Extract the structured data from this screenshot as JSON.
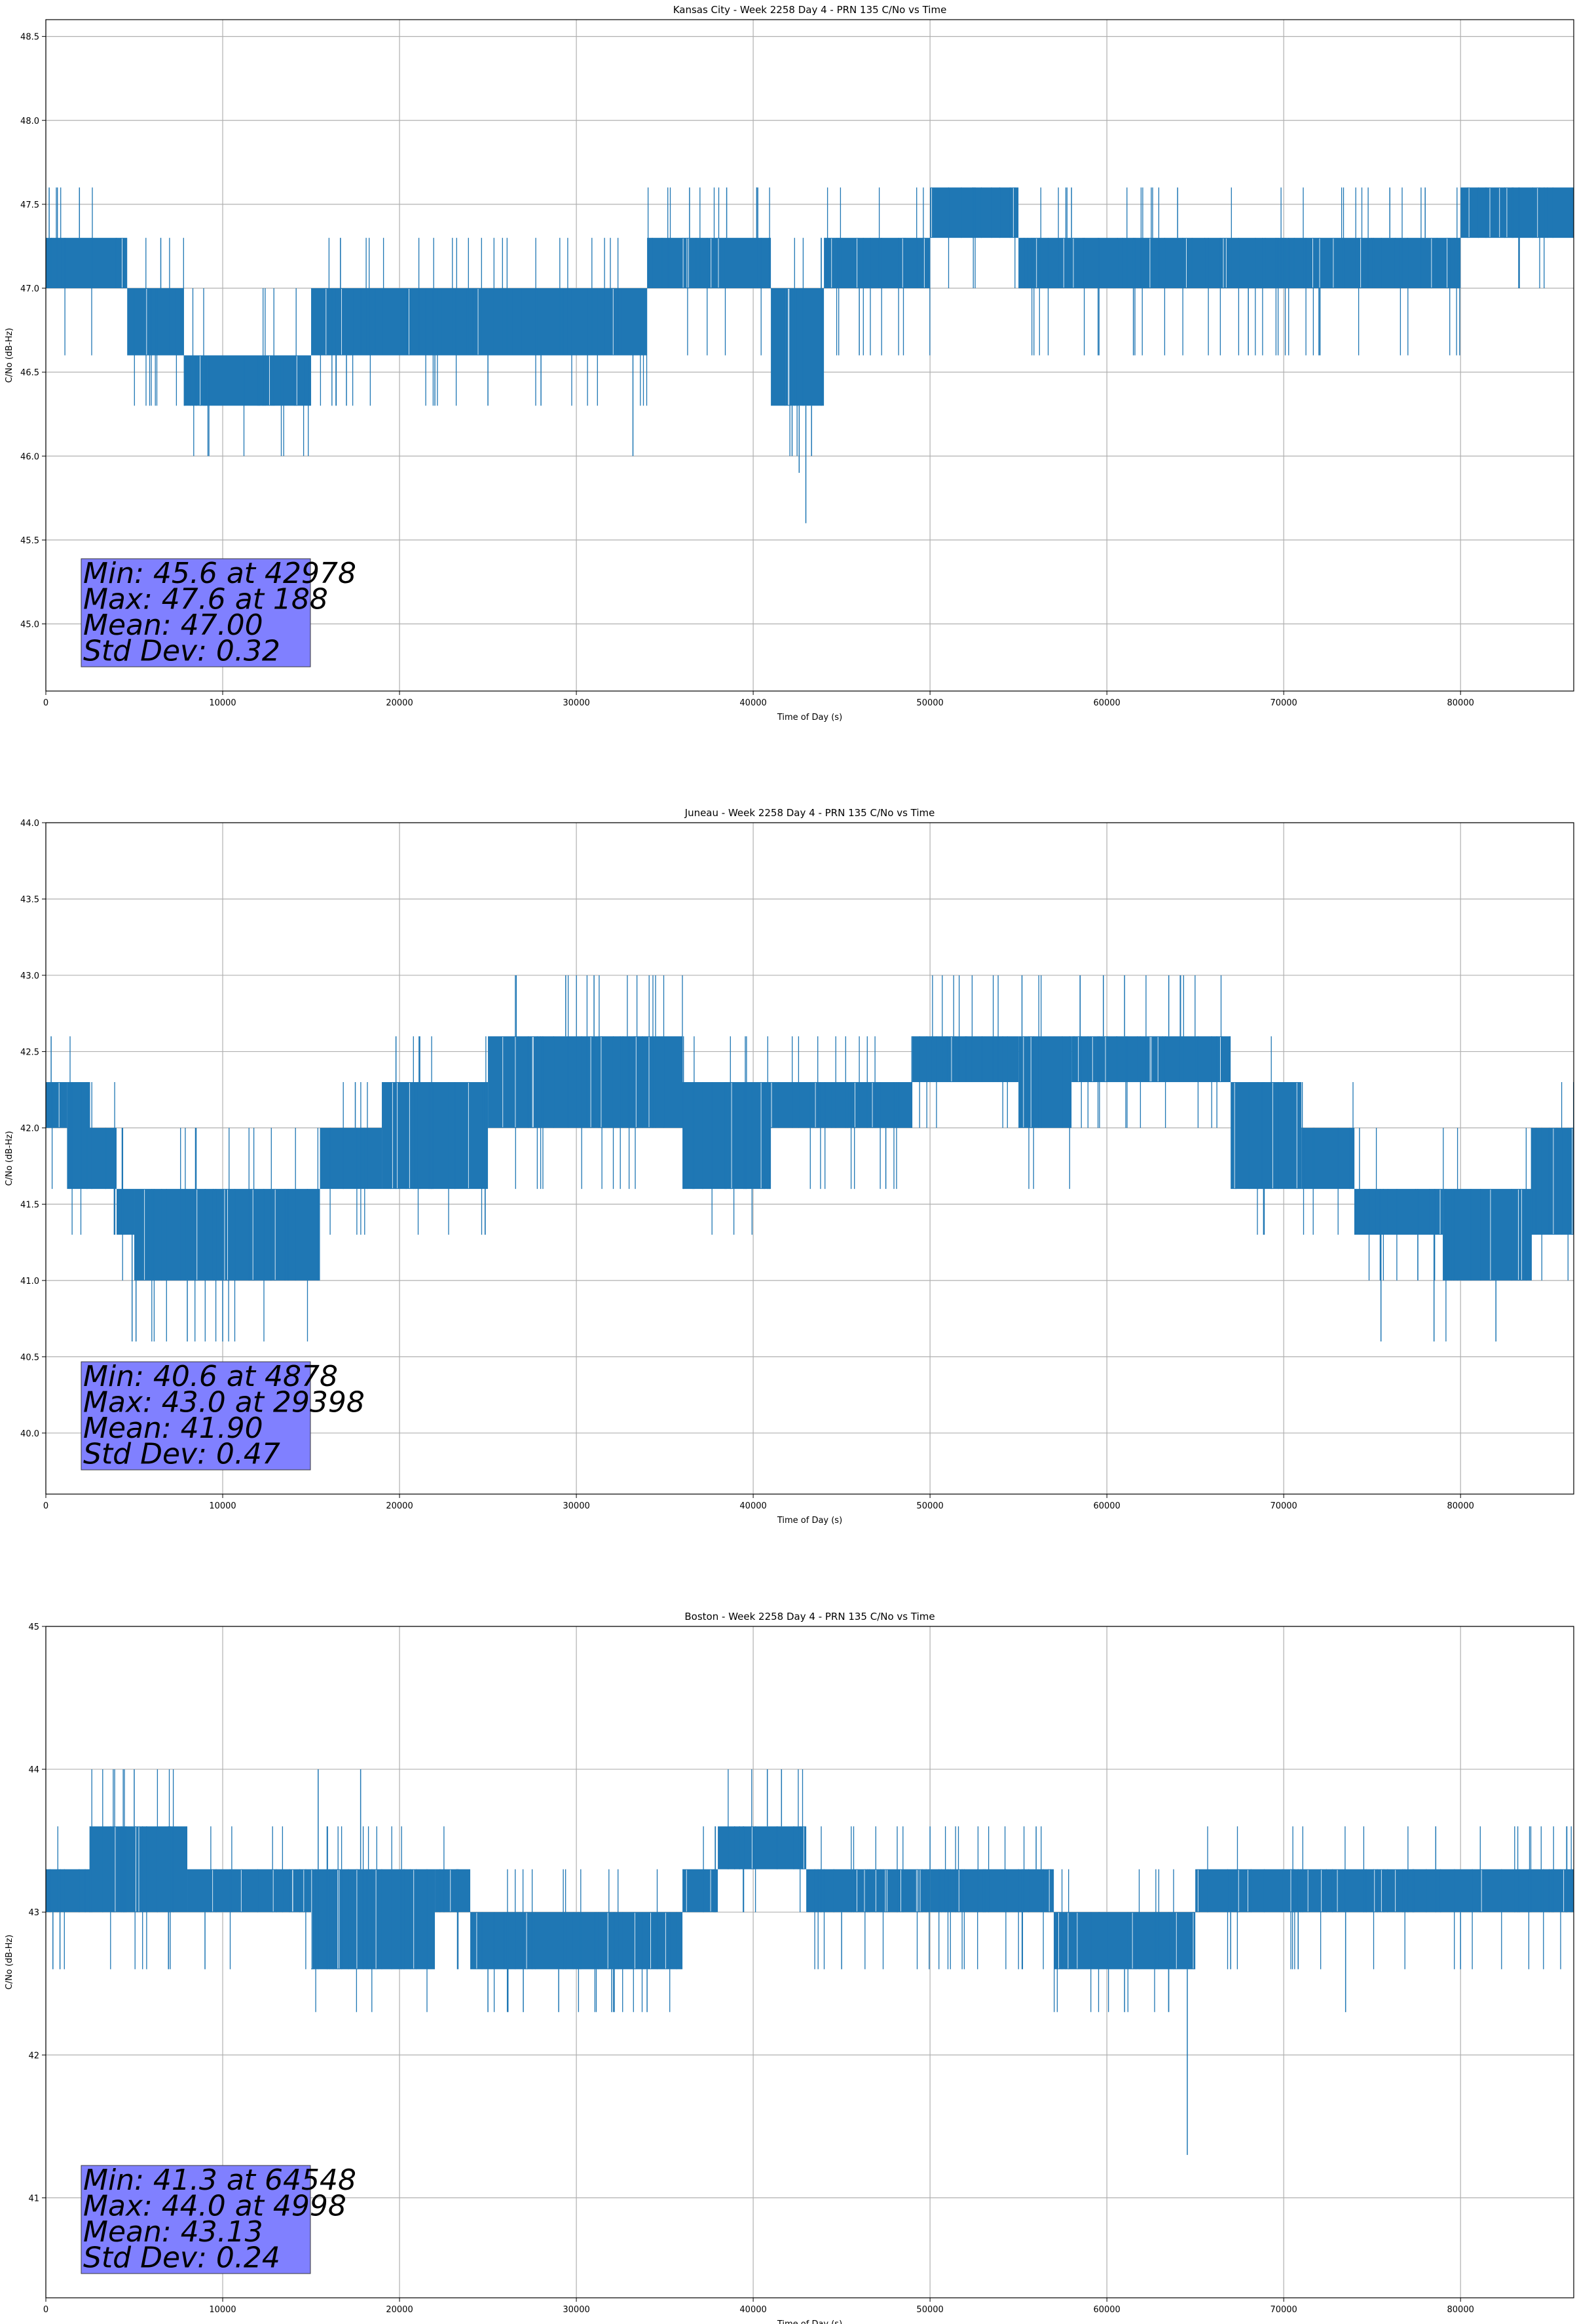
{
  "colors": {
    "series": "#1f77b4",
    "grid": "#b0b0b0",
    "stats_box": "#8080ff"
  },
  "chart_data": [
    {
      "type": "line",
      "title": "Kansas City - Week 2258 Day 4 - PRN 135 C/No vs Time",
      "xlabel": "Time of Day (s)",
      "ylabel": "C/No (dB-Hz)",
      "xlim": [
        0,
        86400
      ],
      "ylim": [
        44.6,
        48.6
      ],
      "xticks": [
        0,
        10000,
        20000,
        30000,
        40000,
        50000,
        60000,
        70000,
        80000
      ],
      "yticks": [
        45.0,
        45.5,
        46.0,
        46.5,
        47.0,
        47.5,
        48.0,
        48.5
      ],
      "ytick_decimals": 1,
      "grid": true,
      "legend": "none",
      "stats_placement": "bottom-left",
      "stats": [
        "Min: 45.6 at 42978",
        "Max: 47.6 at 188",
        "Mean: 47.00",
        "Std Dev: 0.32"
      ],
      "series": [
        {
          "levels": [
            45.6,
            45.9,
            46.0,
            46.3,
            46.6,
            47.0,
            47.3,
            47.6
          ],
          "min_point": [
            42978,
            45.6
          ],
          "max_point": [
            188,
            47.6
          ],
          "segments": [
            [
              0,
              4600,
              47.0,
              47.3
            ],
            [
              4600,
              7800,
              46.6,
              47.0
            ],
            [
              7800,
              15000,
              46.3,
              46.6
            ],
            [
              15000,
              34000,
              46.6,
              47.0
            ],
            [
              34000,
              36000,
              47.0,
              47.3
            ],
            [
              36000,
              41000,
              47.0,
              47.3
            ],
            [
              41000,
              44000,
              46.3,
              47.0
            ],
            [
              44000,
              50000,
              47.0,
              47.3
            ],
            [
              50000,
              55000,
              47.3,
              47.6
            ],
            [
              55000,
              80000,
              47.0,
              47.3
            ],
            [
              80000,
              86400,
              47.3,
              47.6
            ]
          ],
          "spikes": [
            [
              188,
              47.6
            ],
            [
              1900,
              47.6
            ],
            [
              6500,
              47.3
            ],
            [
              9000,
              46.3
            ],
            [
              12000,
              46.3
            ],
            [
              17000,
              46.3
            ],
            [
              22000,
              46.3
            ],
            [
              25000,
              46.3
            ],
            [
              28000,
              46.3
            ],
            [
              33200,
              46.0
            ],
            [
              36400,
              47.6
            ],
            [
              38500,
              47.6
            ],
            [
              40200,
              47.6
            ],
            [
              41800,
              46.3
            ],
            [
              42200,
              46.0
            ],
            [
              42600,
              45.9
            ],
            [
              42978,
              45.6
            ],
            [
              43300,
              46.0
            ],
            [
              46000,
              46.6
            ],
            [
              50500,
              47.6
            ],
            [
              58000,
              47.6
            ],
            [
              61500,
              46.6
            ],
            [
              64000,
              47.6
            ],
            [
              68000,
              46.6
            ],
            [
              72000,
              46.6
            ],
            [
              76000,
              47.6
            ],
            [
              78000,
              47.6
            ]
          ]
        }
      ]
    },
    {
      "type": "line",
      "title": "Juneau - Week 2258 Day 4 - PRN 135 C/No vs Time",
      "xlabel": "Time of Day (s)",
      "ylabel": "C/No (dB-Hz)",
      "xlim": [
        0,
        86400
      ],
      "ylim": [
        39.6,
        44.0
      ],
      "xticks": [
        0,
        10000,
        20000,
        30000,
        40000,
        50000,
        60000,
        70000,
        80000
      ],
      "yticks": [
        40.0,
        40.5,
        41.0,
        41.5,
        42.0,
        42.5,
        43.0,
        43.5,
        44.0
      ],
      "ytick_decimals": 1,
      "grid": true,
      "legend": "none",
      "stats_placement": "bottom-left",
      "stats": [
        "Min: 40.6 at 4878",
        "Max: 43.0 at 29398",
        "Mean: 41.90",
        "Std Dev: 0.47"
      ],
      "series": [
        {
          "levels": [
            40.6,
            41.0,
            41.3,
            41.6,
            42.0,
            42.3,
            42.6,
            43.0
          ],
          "min_point": [
            4878,
            40.6
          ],
          "max_point": [
            29398,
            43.0
          ],
          "segments": [
            [
              0,
              1200,
              42.0,
              42.3
            ],
            [
              1200,
              2500,
              41.6,
              42.3
            ],
            [
              2500,
              4000,
              41.6,
              42.0
            ],
            [
              4000,
              5000,
              41.3,
              41.6
            ],
            [
              5000,
              15500,
              41.0,
              41.6
            ],
            [
              15500,
              19000,
              41.6,
              42.0
            ],
            [
              19000,
              25000,
              41.6,
              42.3
            ],
            [
              25000,
              36000,
              42.0,
              42.6
            ],
            [
              36000,
              41000,
              41.6,
              42.3
            ],
            [
              41000,
              49000,
              42.0,
              42.3
            ],
            [
              49000,
              55000,
              42.3,
              42.6
            ],
            [
              55000,
              58000,
              42.0,
              42.6
            ],
            [
              58000,
              67000,
              42.3,
              42.6
            ],
            [
              67000,
              71000,
              41.6,
              42.3
            ],
            [
              71000,
              74000,
              41.6,
              42.0
            ],
            [
              74000,
              79000,
              41.3,
              41.6
            ],
            [
              79000,
              84000,
              41.0,
              41.6
            ],
            [
              84000,
              86400,
              41.3,
              42.0
            ]
          ],
          "spikes": [
            [
              300,
              42.6
            ],
            [
              4878,
              40.6
            ],
            [
              5100,
              40.6
            ],
            [
              8000,
              40.6
            ],
            [
              8500,
              42.0
            ],
            [
              10000,
              40.6
            ],
            [
              17500,
              42.3
            ],
            [
              19800,
              42.6
            ],
            [
              25400,
              42.6
            ],
            [
              29398,
              43.0
            ],
            [
              31000,
              43.0
            ],
            [
              47500,
              41.6
            ],
            [
              55200,
              43.0
            ],
            [
              59800,
              43.0
            ],
            [
              61000,
              43.0
            ],
            [
              63500,
              43.0
            ],
            [
              75500,
              40.6
            ],
            [
              78500,
              40.6
            ],
            [
              82000,
              40.6
            ],
            [
              85000,
              42.0
            ]
          ]
        }
      ]
    },
    {
      "type": "line",
      "title": "Boston - Week 2258 Day 4 - PRN 135 C/No vs Time",
      "xlabel": "Time of Day (s)",
      "ylabel": "C/No (dB-Hz)",
      "xlim": [
        0,
        86400
      ],
      "ylim": [
        40.3,
        45.0
      ],
      "xticks": [
        0,
        10000,
        20000,
        30000,
        40000,
        50000,
        60000,
        70000,
        80000
      ],
      "yticks": [
        41,
        42,
        43,
        44,
        45
      ],
      "ytick_decimals": 0,
      "grid": true,
      "legend": "none",
      "stats_placement": "bottom-left",
      "stats": [
        "Min: 41.3 at 64548",
        "Max: 44.0 at 4998",
        "Mean: 43.13",
        "Std Dev: 0.24"
      ],
      "series": [
        {
          "levels": [
            41.3,
            42.3,
            42.6,
            43.0,
            43.3,
            43.6,
            44.0
          ],
          "min_point": [
            64548,
            41.3
          ],
          "max_point": [
            4998,
            44.0
          ],
          "segments": [
            [
              0,
              2500,
              43.0,
              43.3
            ],
            [
              2500,
              8000,
              43.0,
              43.6
            ],
            [
              8000,
              15000,
              43.0,
              43.3
            ],
            [
              15000,
              22000,
              42.6,
              43.3
            ],
            [
              22000,
              24000,
              43.0,
              43.3
            ],
            [
              24000,
              36000,
              42.6,
              43.0
            ],
            [
              36000,
              38000,
              43.0,
              43.3
            ],
            [
              38000,
              43000,
              43.3,
              43.6
            ],
            [
              43000,
              50000,
              43.0,
              43.3
            ],
            [
              50000,
              57000,
              43.0,
              43.3
            ],
            [
              57000,
              65000,
              42.6,
              43.0
            ],
            [
              65000,
              86400,
              43.0,
              43.3
            ]
          ],
          "spikes": [
            [
              400,
              42.6
            ],
            [
              800,
              42.6
            ],
            [
              4998,
              44.0
            ],
            [
              7000,
              43.6
            ],
            [
              9000,
              42.6
            ],
            [
              15400,
              44.0
            ],
            [
              17800,
              44.0
            ],
            [
              25000,
              42.3
            ],
            [
              27000,
              42.3
            ],
            [
              29000,
              42.3
            ],
            [
              32000,
              42.3
            ],
            [
              34000,
              42.3
            ],
            [
              40800,
              44.0
            ],
            [
              41600,
              44.0
            ],
            [
              45000,
              42.6
            ],
            [
              50000,
              43.6
            ],
            [
              56000,
              43.6
            ],
            [
              61000,
              42.3
            ],
            [
              64548,
              41.3
            ],
            [
              67000,
              42.6
            ],
            [
              73500,
              42.3
            ],
            [
              80000,
              42.6
            ],
            [
              86000,
              43.6
            ]
          ]
        }
      ]
    }
  ]
}
